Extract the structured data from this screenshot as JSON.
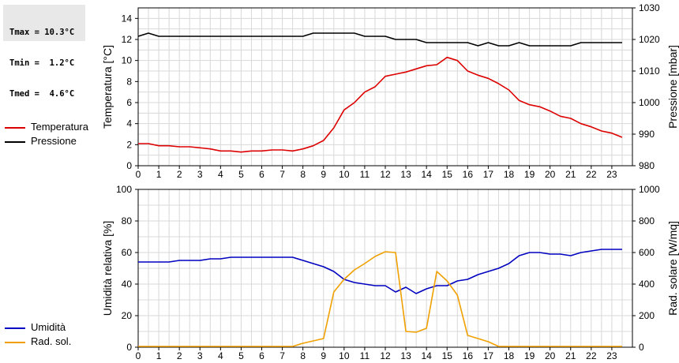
{
  "stats": {
    "lines": [
      "Tmax = 10.3°C",
      "Tmin =  1.2°C",
      "Tmed =  4.6°C"
    ]
  },
  "colors": {
    "temperature": "#dd0000",
    "pressure": "#000000",
    "humidity": "#0000c0",
    "radiation": "#f0a000",
    "grid": "#d8d8d8"
  },
  "legend_top": [
    {
      "label": "Temperatura",
      "color": "#dd0000"
    },
    {
      "label": "Pressione",
      "color": "#000000"
    }
  ],
  "legend_bottom": [
    {
      "label": "Umidità",
      "color": "#0000c0"
    },
    {
      "label": "Rad. sol.",
      "color": "#f0a000"
    }
  ],
  "chart_data": [
    {
      "type": "line",
      "ylabel": "Temperatura [°C]",
      "y2label": "Pressione [mbar]",
      "xlim": [
        0,
        24
      ],
      "ylim": [
        0,
        15
      ],
      "y2lim": [
        980,
        1030
      ],
      "xticks": [
        0,
        1,
        2,
        3,
        4,
        5,
        6,
        7,
        8,
        9,
        10,
        11,
        12,
        13,
        14,
        15,
        16,
        17,
        18,
        19,
        20,
        21,
        22,
        23
      ],
      "yticks": [
        0,
        2,
        4,
        6,
        8,
        10,
        12,
        14
      ],
      "y2ticks": [
        980,
        990,
        1000,
        1010,
        1020,
        1030
      ],
      "grid": true,
      "legend": "left",
      "series": [
        {
          "name": "Temperatura",
          "axis": "left",
          "x": [
            0,
            0.5,
            1,
            1.5,
            2,
            2.5,
            3,
            3.5,
            4,
            4.5,
            5,
            5.5,
            6,
            6.5,
            7,
            7.5,
            8,
            8.5,
            9,
            9.5,
            10,
            10.5,
            11,
            11.5,
            12,
            12.5,
            13,
            13.5,
            14,
            14.5,
            15,
            15.5,
            16,
            16.5,
            17,
            17.5,
            18,
            18.5,
            19,
            19.5,
            20,
            20.5,
            21,
            21.5,
            22,
            22.5,
            23,
            23.5
          ],
          "values": [
            2.1,
            2.1,
            1.9,
            1.9,
            1.8,
            1.8,
            1.7,
            1.6,
            1.4,
            1.4,
            1.3,
            1.4,
            1.4,
            1.5,
            1.5,
            1.4,
            1.6,
            1.9,
            2.4,
            3.6,
            5.3,
            6.0,
            7.0,
            7.5,
            8.5,
            8.7,
            8.9,
            9.2,
            9.5,
            9.6,
            10.3,
            10.0,
            9.0,
            8.6,
            8.3,
            7.8,
            7.2,
            6.2,
            5.8,
            5.6,
            5.2,
            4.7,
            4.5,
            4.0,
            3.7,
            3.3,
            3.1,
            2.7
          ]
        },
        {
          "name": "Pressione",
          "axis": "right",
          "x": [
            0,
            0.5,
            1,
            1.5,
            2,
            2.5,
            3,
            3.5,
            4,
            4.5,
            5,
            5.5,
            6,
            6.5,
            7,
            7.5,
            8,
            8.5,
            9,
            9.5,
            10,
            10.5,
            11,
            11.5,
            12,
            12.5,
            13,
            13.5,
            14,
            14.5,
            15,
            15.5,
            16,
            16.5,
            17,
            17.5,
            18,
            18.5,
            19,
            19.5,
            20,
            20.5,
            21,
            21.5,
            22,
            22.5,
            23,
            23.5
          ],
          "values": [
            1021,
            1022,
            1021,
            1021,
            1021,
            1021,
            1021,
            1021,
            1021,
            1021,
            1021,
            1021,
            1021,
            1021,
            1021,
            1021,
            1021,
            1022,
            1022,
            1022,
            1022,
            1022,
            1021,
            1021,
            1021,
            1020,
            1020,
            1020,
            1019,
            1019,
            1019,
            1019,
            1019,
            1018,
            1019,
            1018,
            1018,
            1019,
            1018,
            1018,
            1018,
            1018,
            1018,
            1019,
            1019,
            1019,
            1019,
            1019
          ]
        }
      ]
    },
    {
      "type": "line",
      "ylabel": "Umidità relativa [%]",
      "y2label": "Rad. solare [W/mq]",
      "xlim": [
        0,
        24
      ],
      "ylim": [
        0,
        100
      ],
      "y2lim": [
        0,
        1000
      ],
      "xticks": [
        0,
        1,
        2,
        3,
        4,
        5,
        6,
        7,
        8,
        9,
        10,
        11,
        12,
        13,
        14,
        15,
        16,
        17,
        18,
        19,
        20,
        21,
        22,
        23
      ],
      "yticks": [
        0,
        20,
        40,
        60,
        80,
        100
      ],
      "y2ticks": [
        0,
        200,
        400,
        600,
        800,
        1000
      ],
      "grid": true,
      "legend": "left",
      "series": [
        {
          "name": "Umidità",
          "axis": "left",
          "x": [
            0,
            0.5,
            1,
            1.5,
            2,
            2.5,
            3,
            3.5,
            4,
            4.5,
            5,
            5.5,
            6,
            6.5,
            7,
            7.5,
            8,
            8.5,
            9,
            9.5,
            10,
            10.5,
            11,
            11.5,
            12,
            12.5,
            13,
            13.5,
            14,
            14.5,
            15,
            15.5,
            16,
            16.5,
            17,
            17.5,
            18,
            18.5,
            19,
            19.5,
            20,
            20.5,
            21,
            21.5,
            22,
            22.5,
            23,
            23.5
          ],
          "values": [
            54,
            54,
            54,
            54,
            55,
            55,
            55,
            56,
            56,
            57,
            57,
            57,
            57,
            57,
            57,
            57,
            55,
            53,
            51,
            48,
            43,
            41,
            40,
            39,
            39,
            35,
            38,
            34,
            37,
            39,
            39,
            42,
            43,
            46,
            48,
            50,
            53,
            58,
            60,
            60,
            59,
            59,
            58,
            60,
            61,
            62,
            62,
            62
          ]
        },
        {
          "name": "Rad. sol.",
          "axis": "right",
          "x": [
            0,
            0.5,
            1,
            1.5,
            2,
            2.5,
            3,
            3.5,
            4,
            4.5,
            5,
            5.5,
            6,
            6.5,
            7,
            7.5,
            8,
            8.5,
            9,
            9.5,
            10,
            10.5,
            11,
            11.5,
            12,
            12.5,
            13,
            13.5,
            14,
            14.5,
            15,
            15.5,
            16,
            16.5,
            17,
            17.5,
            18,
            18.5,
            19,
            19.5,
            20,
            20.5,
            21,
            21.5,
            22,
            22.5,
            23,
            23.5
          ],
          "values": [
            5,
            5,
            5,
            5,
            5,
            5,
            5,
            5,
            5,
            5,
            5,
            5,
            5,
            5,
            5,
            5,
            25,
            40,
            55,
            350,
            430,
            490,
            530,
            575,
            605,
            600,
            100,
            95,
            120,
            480,
            420,
            330,
            75,
            55,
            35,
            5,
            5,
            5,
            5,
            5,
            5,
            5,
            5,
            5,
            5,
            5,
            5,
            5
          ]
        }
      ]
    }
  ]
}
